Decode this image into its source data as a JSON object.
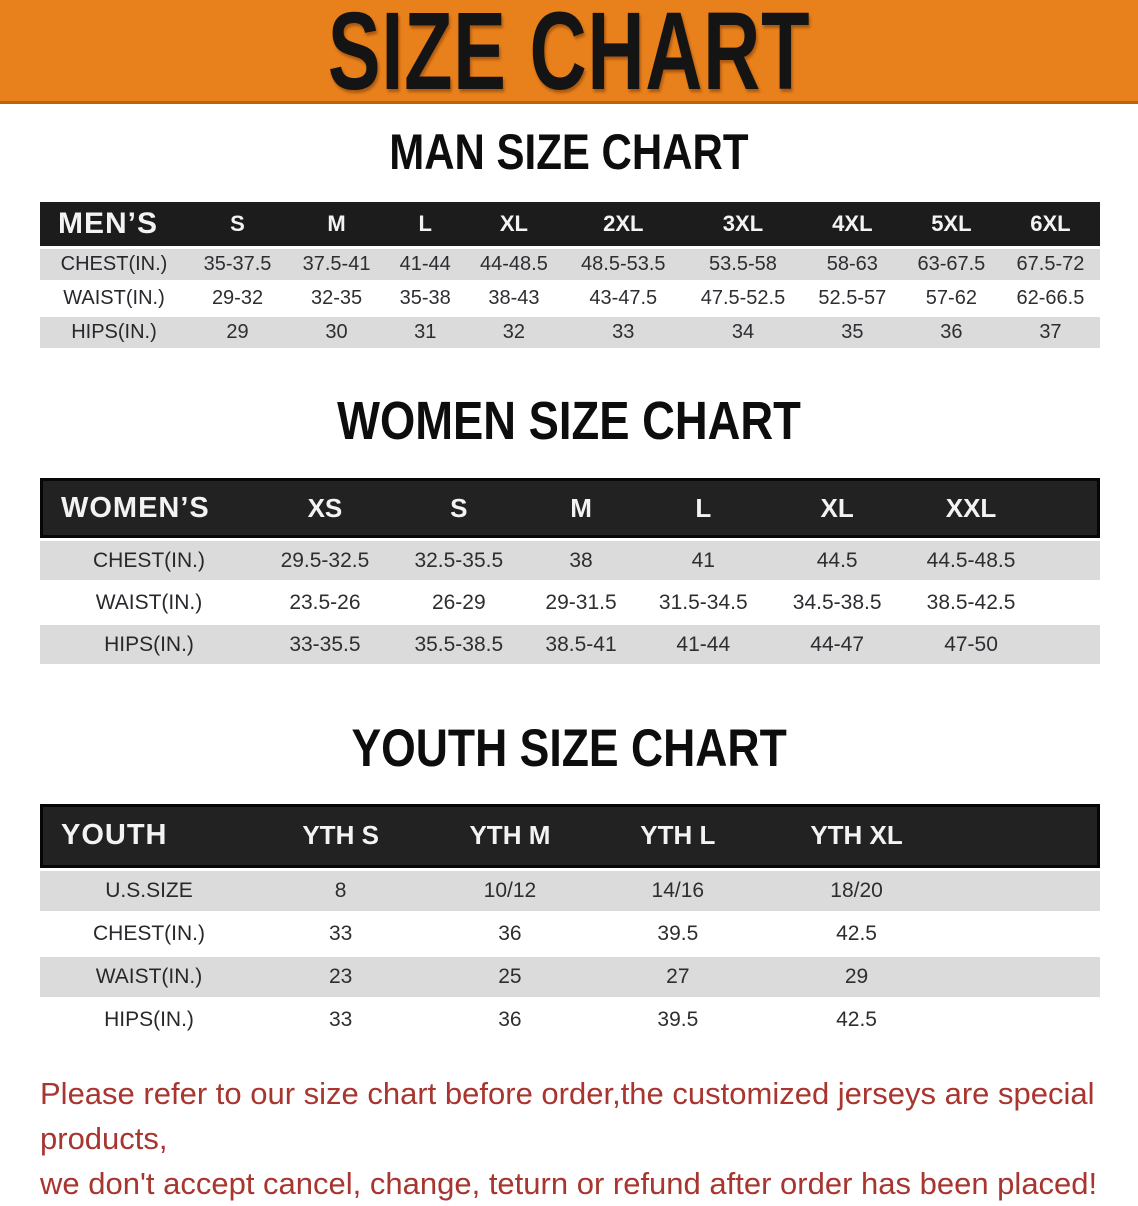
{
  "banner": {
    "title": "SIZE CHART"
  },
  "sections": {
    "men": {
      "title": "MAN SIZE CHART"
    },
    "women": {
      "title": "WOMEN SIZE CHART"
    },
    "youth": {
      "title": "YOUTH SIZE CHART"
    }
  },
  "tables": {
    "men": {
      "group_label": "MEN’S",
      "columns": [
        "S",
        "M",
        "L",
        "XL",
        "2XL",
        "3XL",
        "4XL",
        "5XL",
        "6XL"
      ],
      "rows": [
        {
          "label": "CHEST(IN.)",
          "values": [
            "35-37.5",
            "37.5-41",
            "41-44",
            "44-48.5",
            "48.5-53.5",
            "53.5-58",
            "58-63",
            "63-67.5",
            "67.5-72"
          ]
        },
        {
          "label": "WAIST(IN.)",
          "values": [
            "29-32",
            "32-35",
            "35-38",
            "38-43",
            "43-47.5",
            "47.5-52.5",
            "52.5-57",
            "57-62",
            "62-66.5"
          ]
        },
        {
          "label": "HIPS(IN.)",
          "values": [
            "29",
            "30",
            "31",
            "32",
            "33",
            "34",
            "35",
            "36",
            "37"
          ]
        }
      ]
    },
    "women": {
      "group_label": "WOMEN’S",
      "columns": [
        "XS",
        "S",
        "M",
        "L",
        "XL",
        "XXL"
      ],
      "rows": [
        {
          "label": "CHEST(IN.)",
          "values": [
            "29.5-32.5",
            "32.5-35.5",
            "38",
            "41",
            "44.5",
            "44.5-48.5"
          ]
        },
        {
          "label": "WAIST(IN.)",
          "values": [
            "23.5-26",
            "26-29",
            "29-31.5",
            "31.5-34.5",
            "34.5-38.5",
            "38.5-42.5"
          ]
        },
        {
          "label": "HIPS(IN.)",
          "values": [
            "33-35.5",
            "35.5-38.5",
            "38.5-41",
            "41-44",
            "44-47",
            "47-50"
          ]
        }
      ]
    },
    "youth": {
      "group_label": "YOUTH",
      "columns": [
        "YTH S",
        "YTH M",
        "YTH L",
        "YTH XL"
      ],
      "rows": [
        {
          "label": "U.S.SIZE",
          "values": [
            "8",
            "10/12",
            "14/16",
            "18/20"
          ]
        },
        {
          "label": "CHEST(IN.)",
          "values": [
            "33",
            "36",
            "39.5",
            "42.5"
          ]
        },
        {
          "label": "WAIST(IN.)",
          "values": [
            "23",
            "25",
            "27",
            "29"
          ]
        },
        {
          "label": "HIPS(IN.)",
          "values": [
            "33",
            "36",
            "39.5",
            "42.5"
          ]
        }
      ]
    }
  },
  "footer": {
    "line1": "Please refer to our size chart before order,the customized jerseys are special products,",
    "line2": "we don't accept cancel, change, teturn or refund after order has been placed!"
  },
  "colors": {
    "banner_bg": "#E8801B",
    "header_bg": "#1C1C1C",
    "stripe_row": "#DBDBDB",
    "footer_text": "#A8352F"
  }
}
